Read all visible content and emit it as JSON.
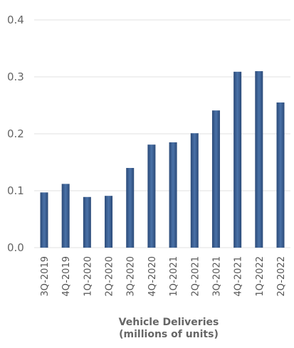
{
  "chart_data": {
    "type": "bar",
    "categories": [
      "3Q-2019",
      "4Q-2019",
      "1Q-2020",
      "2Q-2020",
      "3Q-2020",
      "4Q-2020",
      "1Q-2021",
      "2Q-2021",
      "3Q-2021",
      "4Q-2021",
      "1Q-2022",
      "2Q-2022"
    ],
    "values": [
      0.097,
      0.112,
      0.089,
      0.091,
      0.14,
      0.181,
      0.185,
      0.201,
      0.241,
      0.309,
      0.31,
      0.255
    ],
    "title": "",
    "xlabel": [
      "Vehicle Deliveries",
      "(millions of units)"
    ],
    "ylabel": "",
    "ylim": [
      0,
      0.4
    ],
    "yticks": [
      "0.0",
      "0.1",
      "0.2",
      "0.3",
      "0.4"
    ],
    "grid": true,
    "bar_color": "#3a5e91"
  }
}
